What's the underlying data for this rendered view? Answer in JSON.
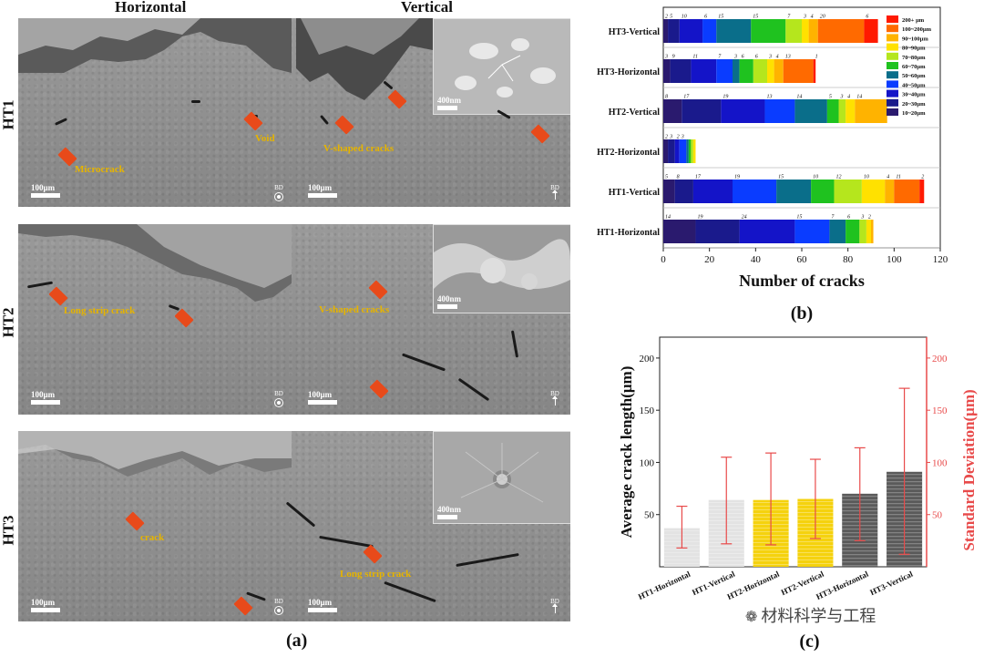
{
  "panel_a": {
    "label": "(a)",
    "col_headers": [
      "Horizontal",
      "Vertical"
    ],
    "rows": [
      {
        "name": "HT1",
        "annotations": [
          "Void",
          "Microcrack",
          "V-shaped cracks"
        ],
        "scale_left": "100μm",
        "scale_right": "100μm",
        "inset_scale": "400nm",
        "bd_left": "BD",
        "bd_right": "BD"
      },
      {
        "name": "HT2",
        "annotations": [
          "Long strip crack",
          "V-shaped cracks"
        ],
        "scale_left": "100μm",
        "scale_right": "100μm",
        "inset_scale": "400nm",
        "bd_left": "BD",
        "bd_right": "BD"
      },
      {
        "name": "HT3",
        "annotations": [
          "crack",
          "Long strip crack"
        ],
        "scale_left": "100μm",
        "scale_right": "100μm",
        "inset_scale": "400nm",
        "bd_left": "BD",
        "bd_right": "BD"
      }
    ]
  },
  "chart_data": [
    {
      "id": "b",
      "label": "(b)",
      "type": "bar",
      "orientation": "horizontal",
      "stacked": true,
      "xlabel": "Number of cracks",
      "xlim": [
        0,
        120
      ],
      "xticks": [
        0,
        20,
        40,
        60,
        80,
        100,
        120
      ],
      "categories": [
        "HT3-Vertical",
        "HT3-Horizontal",
        "HT2-Vertical",
        "HT2-Horizontal",
        "HT1-Vertical",
        "HT1-Horizontal"
      ],
      "legend": [
        "200+ μm",
        "100~200μm",
        "90~100μm",
        "80~90μm",
        "70~80μm",
        "60~70μm",
        "50~60μm",
        "40~50μm",
        "30~40μm",
        "20~30μm",
        "10~20μm"
      ],
      "legend_colors": [
        "#ff1a00",
        "#ff6a00",
        "#ffb300",
        "#ffe100",
        "#b5e61d",
        "#1fc21f",
        "#0a6e8a",
        "#0a3cff",
        "#1414c8",
        "#1a1a8c",
        "#2a1a6e"
      ],
      "series_order_bottom_to_top": [
        "10~20μm",
        "20~30μm",
        "30~40μm",
        "40~50μm",
        "50~60μm",
        "60~70μm",
        "70~80μm",
        "80~90μm",
        "90~100μm",
        "100~200μm",
        "200+ μm"
      ],
      "values": {
        "HT3-Vertical": [
          2,
          5,
          10,
          6,
          15,
          15,
          7,
          3,
          4,
          20,
          6
        ],
        "HT3-Horizontal": [
          3,
          9,
          11,
          7,
          3,
          6,
          6,
          3,
          4,
          13,
          1
        ],
        "HT2-Vertical": [
          8,
          17,
          19,
          13,
          14,
          5,
          3,
          4,
          14,
          0,
          0
        ],
        "HT2-Horizontal": [
          2,
          3,
          2,
          3,
          1,
          1,
          1,
          1,
          0,
          0,
          0
        ],
        "HT1-Vertical": [
          5,
          8,
          17,
          19,
          15,
          10,
          12,
          10,
          4,
          11,
          2
        ],
        "HT1-Horizontal": [
          14,
          19,
          24,
          15,
          7,
          6,
          3,
          2,
          1,
          0,
          0
        ]
      },
      "segment_labels": {
        "HT3-Vertical": [
          "2",
          "5",
          "10",
          "6",
          "15",
          "15",
          "7",
          "3",
          "4",
          "20",
          "6"
        ],
        "HT3-Horizontal": [
          "3",
          "9",
          "11",
          "7",
          "3",
          "6",
          "6",
          "3",
          "4",
          "13",
          "1"
        ],
        "HT2-Vertical": [
          "8",
          "17",
          "19",
          "13",
          "14",
          "5",
          "3",
          "4",
          "14"
        ],
        "HT2-Horizontal": [
          "2",
          "3",
          "2",
          "3"
        ],
        "HT1-Vertical": [
          "5",
          "8",
          "17",
          "19",
          "15",
          "10",
          "12",
          "10",
          "4",
          "11",
          "2"
        ],
        "HT1-Horizontal": [
          "14",
          "19",
          "24",
          "15",
          "7",
          "6",
          "3",
          "2"
        ]
      }
    },
    {
      "id": "c",
      "label": "(c)",
      "type": "bar",
      "orientation": "vertical",
      "ylabel": "Average crack length(μm)",
      "ylabel_right": "Standard Deviation(μm)",
      "ylim": [
        0,
        220
      ],
      "yticks": [
        50,
        100,
        150,
        200
      ],
      "ylim_right": [
        0,
        220
      ],
      "yticks_right": [
        50,
        100,
        150,
        200
      ],
      "categories": [
        "HT1-Horizontal",
        "HT1-Vertical",
        "HT2-Horizontal",
        "HT2-Vertical",
        "HT3-Horizontal",
        "HT3-Vertical"
      ],
      "values": [
        37,
        64,
        64,
        65,
        70,
        91
      ],
      "err_low": [
        18,
        22,
        21,
        27,
        25,
        12
      ],
      "err_high": [
        58,
        105,
        109,
        103,
        114,
        171
      ],
      "bar_colors": [
        "#e3e3e3",
        "#e3e3e3",
        "#f5d20e",
        "#f5d20e",
        "#5a5a5a",
        "#5a5a5a"
      ],
      "errorbar_color": "#e84a4a"
    }
  ],
  "watermark": "材料科学与工程"
}
